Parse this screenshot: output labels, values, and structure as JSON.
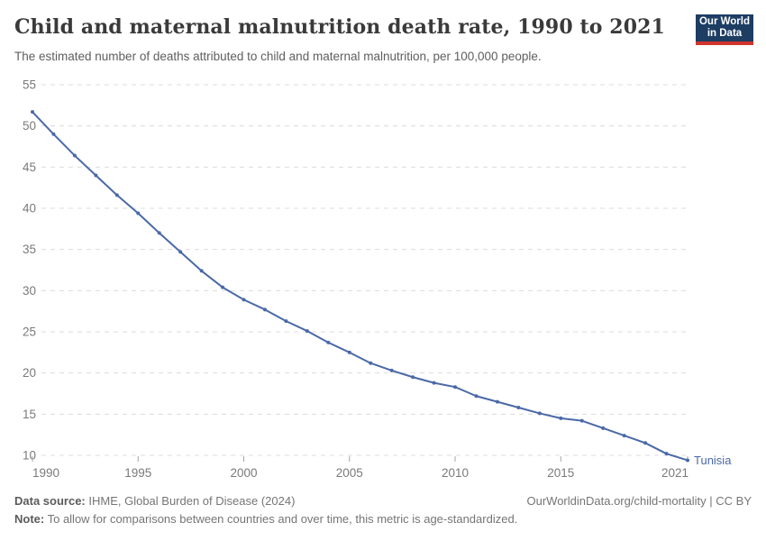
{
  "header": {
    "logo": {
      "line1": "Our World",
      "line2": "in Data"
    }
  },
  "chart_data": {
    "type": "line",
    "title": "Child and maternal malnutrition death rate, 1990 to 2021",
    "subtitle": "The estimated number of deaths attributed to child and maternal malnutrition, per 100,000 people.",
    "xlabel": "",
    "ylabel": "",
    "xlim": [
      1990,
      2021
    ],
    "ylim": [
      10,
      55
    ],
    "xticks": [
      1990,
      1995,
      2000,
      2005,
      2010,
      2015,
      2021
    ],
    "yticks": [
      10,
      15,
      20,
      25,
      30,
      35,
      40,
      45,
      50,
      55
    ],
    "grid": "horizontal-dashed",
    "legend": "end-of-line-label",
    "series": [
      {
        "name": "Tunisia",
        "color": "#4a69a7",
        "x": [
          1990,
          1991,
          1992,
          1993,
          1994,
          1995,
          1996,
          1997,
          1998,
          1999,
          2000,
          2001,
          2002,
          2003,
          2004,
          2005,
          2006,
          2007,
          2008,
          2009,
          2010,
          2011,
          2012,
          2013,
          2014,
          2015,
          2016,
          2017,
          2018,
          2019,
          2020,
          2021
        ],
        "values": [
          51.7,
          49.0,
          46.4,
          44.0,
          41.6,
          39.4,
          37.0,
          34.7,
          32.4,
          30.4,
          28.9,
          27.7,
          26.3,
          25.1,
          23.7,
          22.5,
          21.2,
          20.3,
          19.5,
          18.8,
          18.3,
          17.2,
          16.5,
          15.8,
          15.1,
          14.5,
          14.2,
          13.3,
          12.4,
          11.5,
          10.2,
          9.4
        ]
      }
    ],
    "colors": {
      "grid": "#dcdcdc",
      "tick": "#a5a5a5",
      "axis_text": "#7a7a7a"
    }
  },
  "footer": {
    "source_label": "Data source:",
    "source_value": " IHME, Global Burden of Disease (2024)",
    "link": "OurWorldinData.org/child-mortality | CC BY",
    "note_label": "Note:",
    "note_value": " To allow for comparisons between countries and over time, this metric is age-standardized."
  }
}
